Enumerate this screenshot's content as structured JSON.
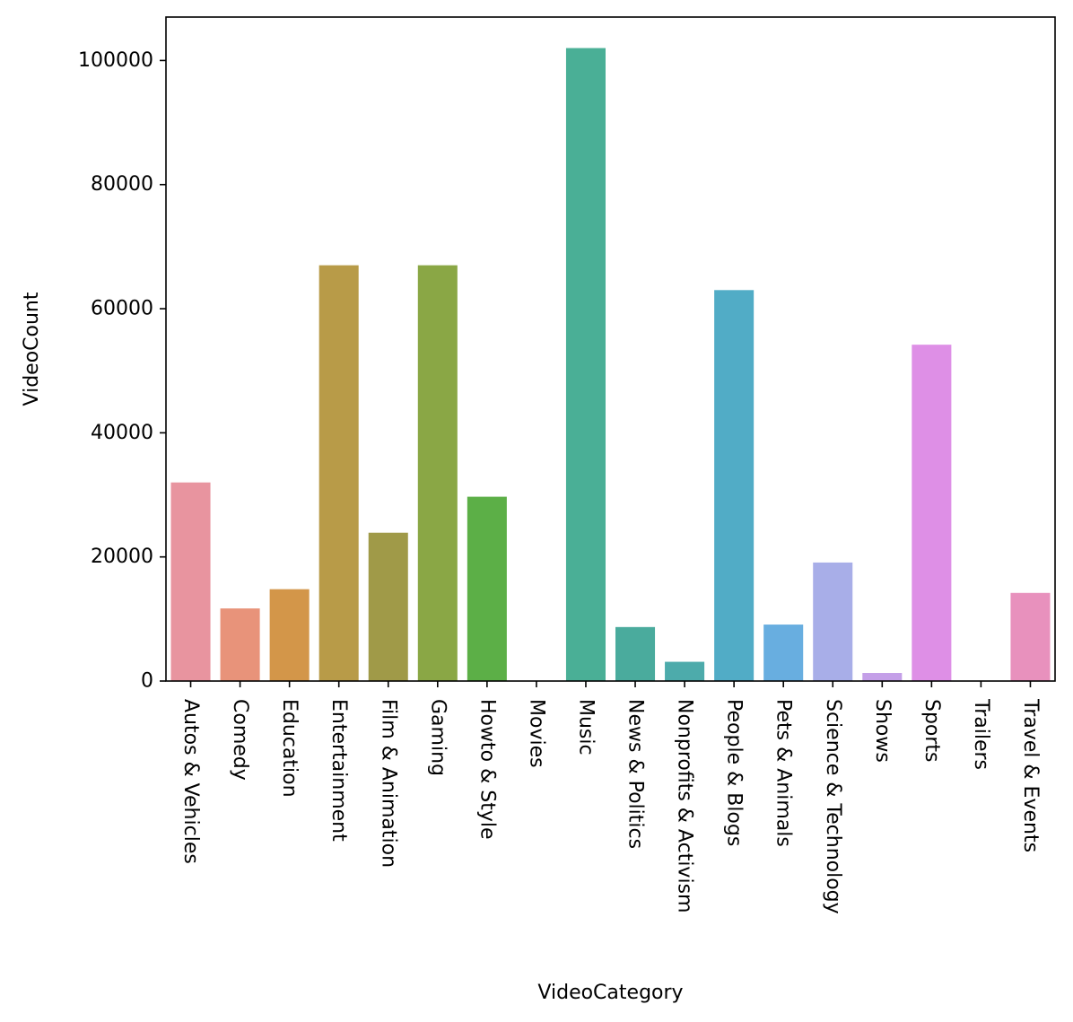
{
  "chart_data": {
    "type": "bar",
    "title": "",
    "xlabel": "VideoCategory",
    "ylabel": "VideoCount",
    "ylim": [
      0,
      107000
    ],
    "yticks": [
      0,
      20000,
      40000,
      60000,
      80000,
      100000
    ],
    "categories": [
      "Autos & Vehicles",
      "Comedy",
      "Education",
      "Entertainment",
      "Film & Animation",
      "Gaming",
      "Howto & Style",
      "Movies",
      "Music",
      "News & Politics",
      "Nonprofits & Activism",
      "People & Blogs",
      "Pets & Animals",
      "Science & Technology",
      "Shows",
      "Sports",
      "Trailers",
      "Travel & Events"
    ],
    "values": [
      32000,
      11700,
      14800,
      67000,
      23900,
      67000,
      29700,
      0,
      102000,
      8700,
      3100,
      63000,
      9100,
      19100,
      1300,
      54200,
      0,
      14200
    ],
    "colors": [
      "#e8949f",
      "#e8937a",
      "#d39649",
      "#b89b48",
      "#a09a48",
      "#8aa745",
      "#5caf47",
      "#48b07f",
      "#4aaf96",
      "#4aab9d",
      "#4dabab",
      "#51acc6",
      "#68aee0",
      "#a8aee8",
      "#c49fe8",
      "#de8fe6",
      "#e18fd0",
      "#e891bd"
    ],
    "grid": false,
    "legend": "none"
  }
}
